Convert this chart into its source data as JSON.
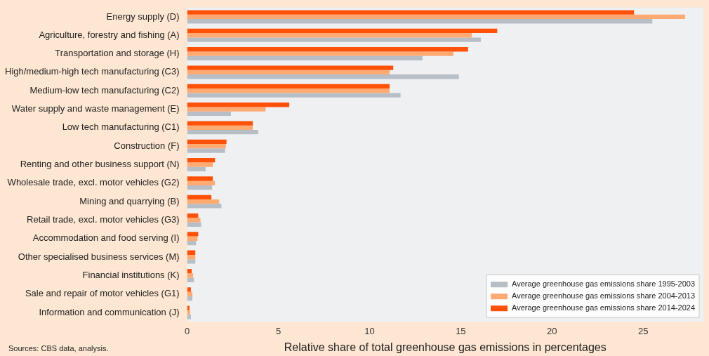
{
  "chart_data": {
    "type": "bar",
    "orientation": "horizontal",
    "xlabel": "Relative share of total greenhouse gas emissions in percentages",
    "annotations": [
      "Sources: CBS data, analysis."
    ],
    "categories": [
      "Energy supply (D)",
      "Agriculture, forestry and fishing (A)",
      "Transportation and storage (H)",
      "High/medium-high tech manufacturing (C3)",
      "Medium-low tech manufacturing (C2)",
      "Water supply and waste management (E)",
      "Low tech manufacturing (C1)",
      "Construction (F)",
      "Renting and other business support (N)",
      "Wholesale trade, excl. motor vehicles (G2)",
      "Mining and quarrying (B)",
      "Retail trade, excl. motor vehicles (G3)",
      "Accommodation and food serving (I)",
      "Other specialised business services (M)",
      "Financial institutions (K)",
      "Sale and repair of motor vehicles (G1)",
      "Information and communication (J)"
    ],
    "series": [
      {
        "name": "Average greenhouse gas emissions share 2014-2024",
        "color": "#ff5208",
        "values": [
          24.5,
          17.0,
          15.4,
          11.3,
          11.1,
          5.6,
          3.6,
          2.16,
          1.53,
          1.41,
          1.33,
          0.61,
          0.61,
          0.45,
          0.25,
          0.21,
          0.13
        ]
      },
      {
        "name": "Average greenhouse gas emissions share 2004-2013",
        "color": "#ffaa73",
        "values": [
          27.3,
          15.6,
          14.6,
          11.1,
          11.1,
          4.3,
          3.6,
          2.12,
          1.41,
          1.53,
          1.76,
          0.73,
          0.57,
          0.45,
          0.33,
          0.29,
          0.17
        ]
      },
      {
        "name": "Average greenhouse gas emissions share 1995-2003",
        "color": "#b8bec6",
        "values": [
          25.5,
          16.1,
          12.9,
          14.9,
          11.7,
          2.4,
          3.9,
          2.08,
          1.01,
          1.37,
          1.88,
          0.77,
          0.49,
          0.45,
          0.37,
          0.29,
          0.21
        ]
      }
    ],
    "xlim": [
      0,
      28.3
    ],
    "xticks": [
      0,
      5,
      10,
      15,
      20,
      25
    ],
    "grid": false,
    "legend": "bottom right"
  }
}
